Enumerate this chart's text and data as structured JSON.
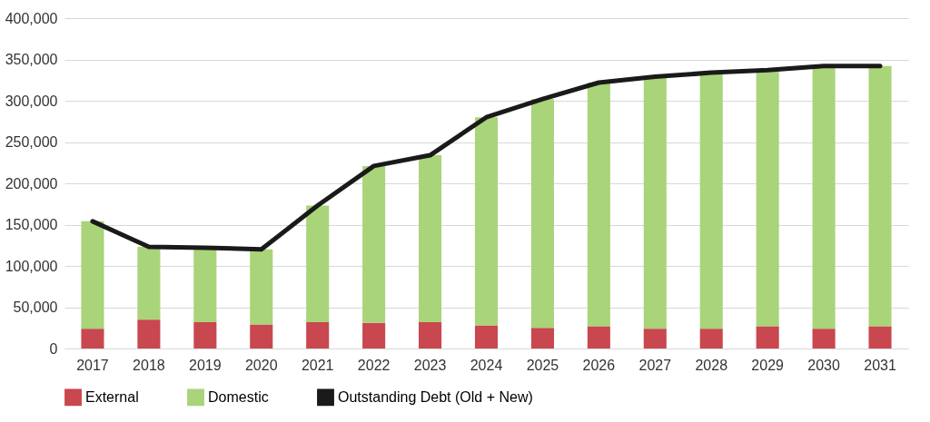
{
  "chart_data": {
    "type": "bar",
    "stacked": true,
    "categories": [
      "2017",
      "2018",
      "2019",
      "2020",
      "2021",
      "2022",
      "2023",
      "2024",
      "2025",
      "2026",
      "2027",
      "2028",
      "2029",
      "2030",
      "2031"
    ],
    "series": [
      {
        "name": "External",
        "color": "#c9474f",
        "values": [
          24000,
          35000,
          32000,
          29000,
          32000,
          31000,
          32000,
          28000,
          25000,
          27000,
          24000,
          24000,
          27000,
          24000,
          27000
        ]
      },
      {
        "name": "Domestic",
        "color": "#a9d47a",
        "values": [
          130000,
          88000,
          90000,
          91000,
          141000,
          190000,
          202000,
          252000,
          277000,
          295000,
          305000,
          310000,
          310000,
          318000,
          315000
        ]
      },
      {
        "name": "Outstanding Debt (Old + New)",
        "type": "line",
        "color": "#1a1a1a",
        "values": [
          154000,
          123000,
          122000,
          120000,
          173000,
          221000,
          234000,
          280000,
          302000,
          322000,
          329000,
          334000,
          337000,
          342000,
          342000
        ]
      }
    ],
    "ylim": [
      0,
      400000
    ],
    "yticks": [
      0,
      {
        "value": 50000,
        "label": "50,000"
      },
      {
        "value": 100000,
        "label": "100,000"
      },
      {
        "value": 150000,
        "label": "150,000"
      },
      {
        "value": 200000,
        "label": "200,000"
      },
      {
        "value": 250000,
        "label": "250,000"
      },
      {
        "value": 300000,
        "label": "300,000"
      },
      {
        "value": 350000,
        "label": "350,000"
      },
      {
        "value": 400000,
        "label": "400,000"
      }
    ],
    "grid": "y",
    "legend": "bottom"
  }
}
